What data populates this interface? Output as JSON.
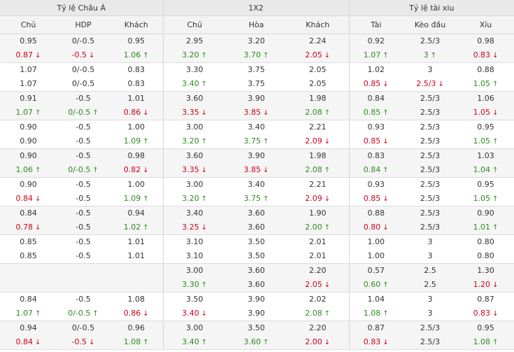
{
  "header": {
    "groups": [
      "Tỷ lệ Châu Á",
      "1X2",
      "Tỷ lệ tài xiu"
    ],
    "columns": [
      "Chủ",
      "HDP",
      "Khách",
      "Chủ",
      "Hòa",
      "Khách",
      "Tài",
      "Kèo đầu",
      "Xỉu"
    ]
  },
  "rows": [
    [
      [
        {
          "v": "0.95"
        },
        {
          "v": "0.87",
          "d": "down"
        }
      ],
      [
        {
          "v": "0/-0.5"
        },
        {
          "v": "-0.5",
          "d": "down"
        }
      ],
      [
        {
          "v": "0.95"
        },
        {
          "v": "1.06",
          "d": "up"
        }
      ],
      [
        {
          "v": "2.95"
        },
        {
          "v": "3.20",
          "d": "up"
        }
      ],
      [
        {
          "v": "3.20"
        },
        {
          "v": "3.70",
          "d": "up"
        }
      ],
      [
        {
          "v": "2.24"
        },
        {
          "v": "2.05",
          "d": "down"
        }
      ],
      [
        {
          "v": "0.92"
        },
        {
          "v": "1.07",
          "d": "up"
        }
      ],
      [
        {
          "v": "2.5/3"
        },
        {
          "v": "3",
          "d": "up"
        }
      ],
      [
        {
          "v": "0.98"
        },
        {
          "v": "0.83",
          "d": "down"
        }
      ]
    ],
    [
      [
        {
          "v": "1.07"
        },
        {
          "v": "1.07"
        }
      ],
      [
        {
          "v": "0/-0.5"
        },
        {
          "v": "0/-0.5"
        }
      ],
      [
        {
          "v": "0.83"
        },
        {
          "v": "0.83"
        }
      ],
      [
        {
          "v": "3.30"
        },
        {
          "v": "3.40",
          "d": "up"
        }
      ],
      [
        {
          "v": "3.75"
        },
        {
          "v": "3.75"
        }
      ],
      [
        {
          "v": "2.05"
        },
        {
          "v": "2.05"
        }
      ],
      [
        {
          "v": "1.02"
        },
        {
          "v": "0.85",
          "d": "down"
        }
      ],
      [
        {
          "v": "3"
        },
        {
          "v": "2.5/3",
          "d": "down"
        }
      ],
      [
        {
          "v": "0.88"
        },
        {
          "v": "1.05",
          "d": "up"
        }
      ]
    ],
    [
      [
        {
          "v": "0.91"
        },
        {
          "v": "1.07",
          "d": "up"
        }
      ],
      [
        {
          "v": "-0.5"
        },
        {
          "v": "0/-0.5",
          "d": "up"
        }
      ],
      [
        {
          "v": "1.01"
        },
        {
          "v": "0.86",
          "d": "down"
        }
      ],
      [
        {
          "v": "3.60"
        },
        {
          "v": "3.35",
          "d": "down"
        }
      ],
      [
        {
          "v": "3.90"
        },
        {
          "v": "3.85",
          "d": "down"
        }
      ],
      [
        {
          "v": "1.98"
        },
        {
          "v": "2.08",
          "d": "up"
        }
      ],
      [
        {
          "v": "0.84"
        },
        {
          "v": "0.85",
          "d": "up"
        }
      ],
      [
        {
          "v": "2.5/3"
        },
        {
          "v": "2.5/3"
        }
      ],
      [
        {
          "v": "1.06"
        },
        {
          "v": "1.05",
          "d": "down"
        }
      ]
    ],
    [
      [
        {
          "v": "0.90"
        },
        {
          "v": "0.90"
        }
      ],
      [
        {
          "v": "-0.5"
        },
        {
          "v": "-0.5"
        }
      ],
      [
        {
          "v": "1.00"
        },
        {
          "v": "1.09",
          "d": "up"
        }
      ],
      [
        {
          "v": "3.00"
        },
        {
          "v": "3.20",
          "d": "up"
        }
      ],
      [
        {
          "v": "3.40"
        },
        {
          "v": "3.75",
          "d": "up"
        }
      ],
      [
        {
          "v": "2.21"
        },
        {
          "v": "2.09",
          "d": "down"
        }
      ],
      [
        {
          "v": "0.93"
        },
        {
          "v": "0.85",
          "d": "down"
        }
      ],
      [
        {
          "v": "2.5/3"
        },
        {
          "v": "2.5/3"
        }
      ],
      [
        {
          "v": "0.95"
        },
        {
          "v": "1.05",
          "d": "up"
        }
      ]
    ],
    [
      [
        {
          "v": "0.90"
        },
        {
          "v": "1.06",
          "d": "up"
        }
      ],
      [
        {
          "v": "-0.5"
        },
        {
          "v": "0/-0.5",
          "d": "up"
        }
      ],
      [
        {
          "v": "0.98"
        },
        {
          "v": "0.82",
          "d": "down"
        }
      ],
      [
        {
          "v": "3.60"
        },
        {
          "v": "3.35",
          "d": "down"
        }
      ],
      [
        {
          "v": "3.90"
        },
        {
          "v": "3.85",
          "d": "down"
        }
      ],
      [
        {
          "v": "1.98"
        },
        {
          "v": "2.08",
          "d": "up"
        }
      ],
      [
        {
          "v": "0.83"
        },
        {
          "v": "0.84",
          "d": "up"
        }
      ],
      [
        {
          "v": "2.5/3"
        },
        {
          "v": "2.5/3"
        }
      ],
      [
        {
          "v": "1.03"
        },
        {
          "v": "1.04",
          "d": "up"
        }
      ]
    ],
    [
      [
        {
          "v": "0.90"
        },
        {
          "v": "0.84",
          "d": "down"
        }
      ],
      [
        {
          "v": "-0.5"
        },
        {
          "v": "-0.5"
        }
      ],
      [
        {
          "v": "1.00"
        },
        {
          "v": "1.09",
          "d": "up"
        }
      ],
      [
        {
          "v": "3.00"
        },
        {
          "v": "3.20",
          "d": "up"
        }
      ],
      [
        {
          "v": "3.40"
        },
        {
          "v": "3.75",
          "d": "up"
        }
      ],
      [
        {
          "v": "2.21"
        },
        {
          "v": "2.09",
          "d": "down"
        }
      ],
      [
        {
          "v": "0.93"
        },
        {
          "v": "0.85",
          "d": "down"
        }
      ],
      [
        {
          "v": "2.5/3"
        },
        {
          "v": "2.5/3"
        }
      ],
      [
        {
          "v": "0.95"
        },
        {
          "v": "1.05",
          "d": "up"
        }
      ]
    ],
    [
      [
        {
          "v": "0.84"
        },
        {
          "v": "0.78",
          "d": "down"
        }
      ],
      [
        {
          "v": "-0.5"
        },
        {
          "v": "-0.5"
        }
      ],
      [
        {
          "v": "0.94"
        },
        {
          "v": "1.02",
          "d": "up"
        }
      ],
      [
        {
          "v": "3.40"
        },
        {
          "v": "3.25",
          "d": "down"
        }
      ],
      [
        {
          "v": "3.60"
        },
        {
          "v": "3.60"
        }
      ],
      [
        {
          "v": "1.90"
        },
        {
          "v": "2.00",
          "d": "up"
        }
      ],
      [
        {
          "v": "0.88"
        },
        {
          "v": "0.80",
          "d": "down"
        }
      ],
      [
        {
          "v": "2.5/3"
        },
        {
          "v": "2.5/3"
        }
      ],
      [
        {
          "v": "0.90"
        },
        {
          "v": "1.01",
          "d": "up"
        }
      ]
    ],
    [
      [
        {
          "v": "0.85"
        },
        {
          "v": "0.85"
        }
      ],
      [
        {
          "v": "-0.5"
        },
        {
          "v": "-0.5"
        }
      ],
      [
        {
          "v": "1.01"
        },
        {
          "v": "1.01"
        }
      ],
      [
        {
          "v": "3.10"
        },
        {
          "v": "3.10"
        }
      ],
      [
        {
          "v": "3.50"
        },
        {
          "v": "3.50"
        }
      ],
      [
        {
          "v": "2.01"
        },
        {
          "v": "2.01"
        }
      ],
      [
        {
          "v": "1.00"
        },
        {
          "v": "1.00"
        }
      ],
      [
        {
          "v": "3"
        },
        {
          "v": "3"
        }
      ],
      [
        {
          "v": "0.80"
        },
        {
          "v": "0.80"
        }
      ]
    ],
    [
      [
        {
          "v": ""
        },
        {
          "v": ""
        }
      ],
      [
        {
          "v": ""
        },
        {
          "v": ""
        }
      ],
      [
        {
          "v": ""
        },
        {
          "v": ""
        }
      ],
      [
        {
          "v": "3.00"
        },
        {
          "v": "3.30",
          "d": "up"
        }
      ],
      [
        {
          "v": "3.60"
        },
        {
          "v": "3.60"
        }
      ],
      [
        {
          "v": "2.20"
        },
        {
          "v": "2.05",
          "d": "down"
        }
      ],
      [
        {
          "v": "0.57"
        },
        {
          "v": "0.60",
          "d": "up"
        }
      ],
      [
        {
          "v": "2.5"
        },
        {
          "v": "2.5"
        }
      ],
      [
        {
          "v": "1.30"
        },
        {
          "v": "1.20",
          "d": "down"
        }
      ]
    ],
    [
      [
        {
          "v": "0.84"
        },
        {
          "v": "1.07",
          "d": "up"
        }
      ],
      [
        {
          "v": "-0.5"
        },
        {
          "v": "0/-0.5",
          "d": "up"
        }
      ],
      [
        {
          "v": "1.08"
        },
        {
          "v": "0.86",
          "d": "down"
        }
      ],
      [
        {
          "v": "3.50"
        },
        {
          "v": "3.40",
          "d": "down"
        }
      ],
      [
        {
          "v": "3.90"
        },
        {
          "v": "3.90"
        }
      ],
      [
        {
          "v": "2.02"
        },
        {
          "v": "2.08",
          "d": "up"
        }
      ],
      [
        {
          "v": "1.04"
        },
        {
          "v": "1.08",
          "d": "up"
        }
      ],
      [
        {
          "v": "3"
        },
        {
          "v": "3"
        }
      ],
      [
        {
          "v": "0.87"
        },
        {
          "v": "0.83",
          "d": "down"
        }
      ]
    ],
    [
      [
        {
          "v": "0.94"
        },
        {
          "v": "0.84",
          "d": "down"
        }
      ],
      [
        {
          "v": "0/-0.5"
        },
        {
          "v": "-0.5",
          "d": "down"
        }
      ],
      [
        {
          "v": "0.96"
        },
        {
          "v": "1.08",
          "d": "up"
        }
      ],
      [
        {
          "v": "3.00"
        },
        {
          "v": "3.40",
          "d": "up"
        }
      ],
      [
        {
          "v": "3.50"
        },
        {
          "v": "3.60",
          "d": "up"
        }
      ],
      [
        {
          "v": "2.20"
        },
        {
          "v": "2.00",
          "d": "down"
        }
      ],
      [
        {
          "v": "0.87"
        },
        {
          "v": "0.83",
          "d": "down"
        }
      ],
      [
        {
          "v": "2.5/3"
        },
        {
          "v": "2.5/3"
        }
      ],
      [
        {
          "v": "0.95"
        },
        {
          "v": "1.08",
          "d": "up"
        }
      ]
    ]
  ]
}
